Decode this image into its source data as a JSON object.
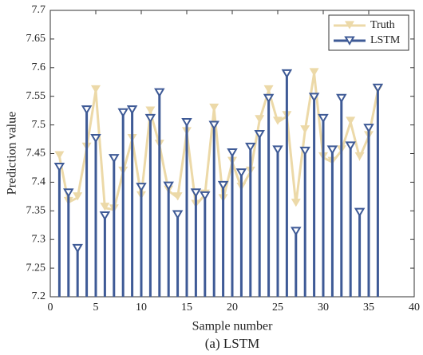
{
  "chart_data": {
    "type": "stem-line",
    "x_label": "Sample number",
    "y_label": "Prediction value",
    "caption": "(a) LSTM",
    "x": [
      1,
      2,
      3,
      4,
      5,
      6,
      7,
      8,
      9,
      10,
      11,
      12,
      13,
      14,
      15,
      16,
      17,
      18,
      19,
      20,
      21,
      22,
      23,
      24,
      25,
      26,
      27,
      28,
      29,
      30,
      31,
      32,
      33,
      34,
      35,
      36
    ],
    "series": [
      {
        "name": "Truth",
        "color": "#ecd9a8",
        "style": "line",
        "values": [
          7.445,
          7.365,
          7.373,
          7.46,
          7.56,
          7.355,
          7.352,
          7.418,
          7.475,
          7.375,
          7.523,
          7.465,
          7.385,
          7.373,
          7.487,
          7.36,
          7.378,
          7.528,
          7.37,
          7.435,
          7.39,
          7.418,
          7.508,
          7.56,
          7.505,
          7.515,
          7.362,
          7.49,
          7.59,
          7.443,
          7.435,
          7.455,
          7.505,
          7.443,
          7.48,
          7.56
        ]
      },
      {
        "name": "LSTM",
        "color": "#3e5a96",
        "style": "stem",
        "values": [
          7.425,
          7.38,
          7.283,
          7.525,
          7.475,
          7.34,
          7.44,
          7.52,
          7.525,
          7.39,
          7.51,
          7.555,
          7.392,
          7.342,
          7.503,
          7.38,
          7.375,
          7.498,
          7.393,
          7.45,
          7.415,
          7.46,
          7.482,
          7.545,
          7.455,
          7.588,
          7.313,
          7.453,
          7.547,
          7.51,
          7.455,
          7.545,
          7.462,
          7.346,
          7.493,
          7.563
        ]
      }
    ],
    "xlim": [
      0,
      40
    ],
    "xticks": [
      0,
      5,
      10,
      15,
      20,
      25,
      30,
      35,
      40
    ],
    "ylim": [
      7.2,
      7.7
    ],
    "yticks": [
      7.2,
      7.25,
      7.3,
      7.35,
      7.4,
      7.45,
      7.5,
      7.55,
      7.6,
      7.65,
      7.7
    ],
    "legend": "top-right"
  }
}
